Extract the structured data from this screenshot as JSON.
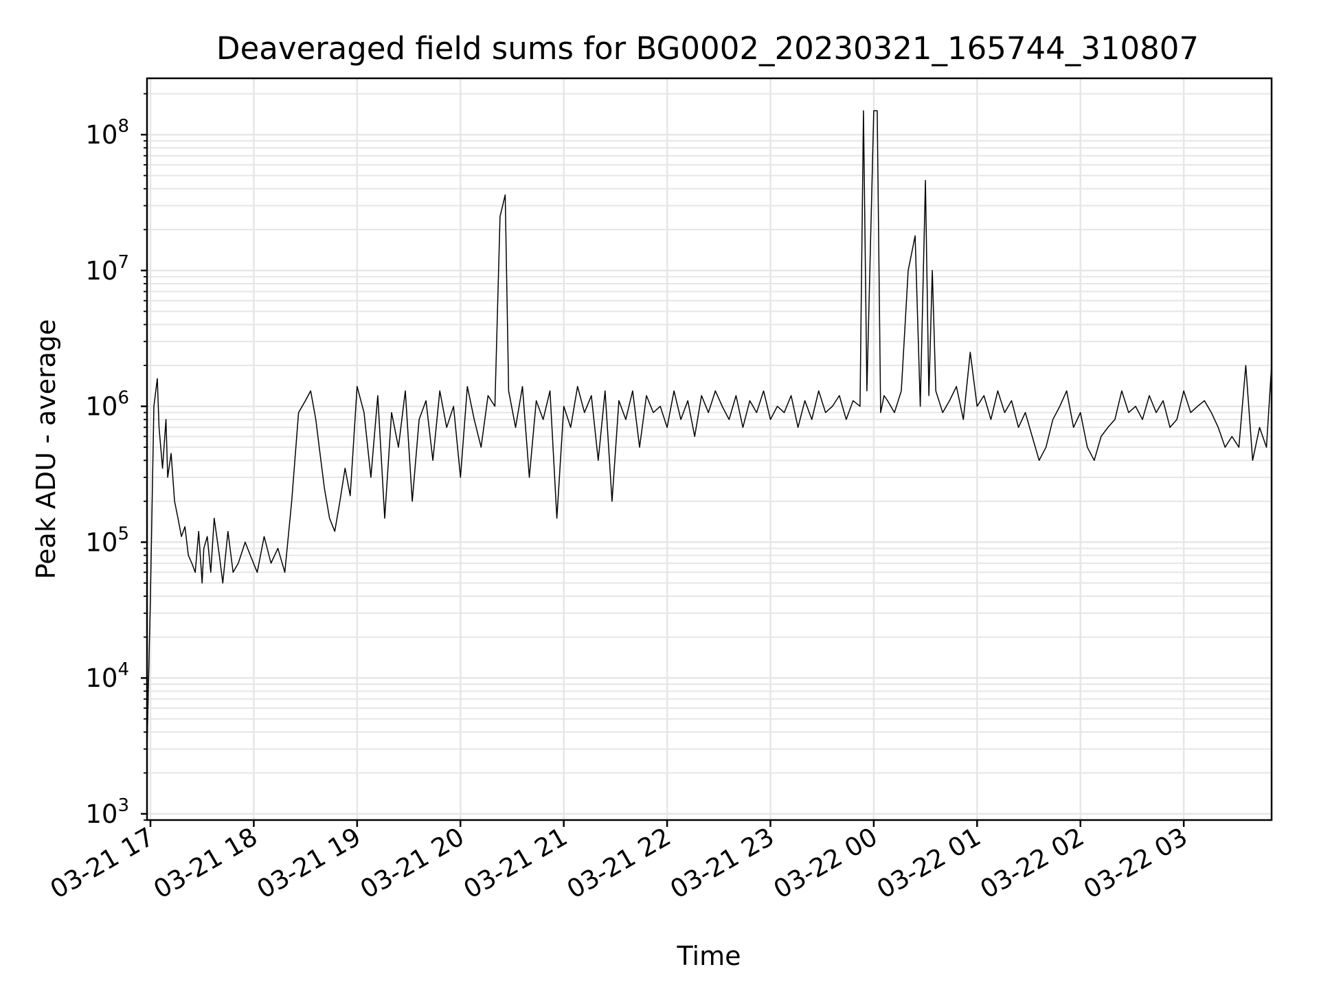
{
  "chart_data": {
    "type": "line",
    "title": "Deaveraged field sums for BG0002_20230321_165744_310807",
    "xlabel": "Time",
    "ylabel": "Peak ADU - average",
    "yscale": "log",
    "ylim": [
      900,
      260000000
    ],
    "xlim": [
      "2023-03-21 16:58",
      "2023-03-22 03:51"
    ],
    "grid": true,
    "legend": "none",
    "line_color": "#000000",
    "grid_color": "#e6e6e6",
    "x_ticks": [
      "03-21 17",
      "03-21 18",
      "03-21 19",
      "03-21 20",
      "03-21 21",
      "03-21 22",
      "03-21 23",
      "03-22 00",
      "03-22 01",
      "03-22 02",
      "03-22 03"
    ],
    "y_ticks": [
      {
        "base": "10",
        "exp": "3",
        "value": 1000
      },
      {
        "base": "10",
        "exp": "4",
        "value": 10000
      },
      {
        "base": "10",
        "exp": "5",
        "value": 100000
      },
      {
        "base": "10",
        "exp": "6",
        "value": 1000000
      },
      {
        "base": "10",
        "exp": "7",
        "value": 10000000
      },
      {
        "base": "10",
        "exp": "8",
        "value": 100000000
      }
    ],
    "series": [
      {
        "x": [
          "2023-03-21 16:58",
          "2023-03-21 17:00",
          "2023-03-21 17:02",
          "2023-03-21 17:04",
          "2023-03-21 17:05",
          "2023-03-21 17:07",
          "2023-03-21 17:09",
          "2023-03-21 17:10",
          "2023-03-21 17:12",
          "2023-03-21 17:14",
          "2023-03-21 17:16",
          "2023-03-21 17:18",
          "2023-03-21 17:20",
          "2023-03-21 17:22",
          "2023-03-21 17:24",
          "2023-03-21 17:26",
          "2023-03-21 17:28",
          "2023-03-21 17:30",
          "2023-03-21 17:31",
          "2023-03-21 17:33",
          "2023-03-21 17:35",
          "2023-03-21 17:37",
          "2023-03-21 17:40",
          "2023-03-21 17:42",
          "2023-03-21 17:45",
          "2023-03-21 17:48",
          "2023-03-21 17:51",
          "2023-03-21 17:55",
          "2023-03-21 17:58",
          "2023-03-21 18:02",
          "2023-03-21 18:06",
          "2023-03-21 18:10",
          "2023-03-21 18:14",
          "2023-03-21 18:18",
          "2023-03-21 18:22",
          "2023-03-21 18:26",
          "2023-03-21 18:30",
          "2023-03-21 18:33",
          "2023-03-21 18:36",
          "2023-03-21 18:38",
          "2023-03-21 18:41",
          "2023-03-21 18:44",
          "2023-03-21 18:47",
          "2023-03-21 18:50",
          "2023-03-21 18:53",
          "2023-03-21 18:56",
          "2023-03-21 19:00",
          "2023-03-21 19:04",
          "2023-03-21 19:08",
          "2023-03-21 19:12",
          "2023-03-21 19:16",
          "2023-03-21 19:20",
          "2023-03-21 19:24",
          "2023-03-21 19:28",
          "2023-03-21 19:32",
          "2023-03-21 19:36",
          "2023-03-21 19:40",
          "2023-03-21 19:44",
          "2023-03-21 19:48",
          "2023-03-21 19:52",
          "2023-03-21 19:56",
          "2023-03-21 20:00",
          "2023-03-21 20:04",
          "2023-03-21 20:08",
          "2023-03-21 20:12",
          "2023-03-21 20:16",
          "2023-03-21 20:20",
          "2023-03-21 20:23",
          "2023-03-21 20:26",
          "2023-03-21 20:28",
          "2023-03-21 20:32",
          "2023-03-21 20:36",
          "2023-03-21 20:40",
          "2023-03-21 20:44",
          "2023-03-21 20:48",
          "2023-03-21 20:52",
          "2023-03-21 20:56",
          "2023-03-21 21:00",
          "2023-03-21 21:04",
          "2023-03-21 21:08",
          "2023-03-21 21:12",
          "2023-03-21 21:16",
          "2023-03-21 21:20",
          "2023-03-21 21:24",
          "2023-03-21 21:28",
          "2023-03-21 21:32",
          "2023-03-21 21:36",
          "2023-03-21 21:40",
          "2023-03-21 21:44",
          "2023-03-21 21:48",
          "2023-03-21 21:52",
          "2023-03-21 21:56",
          "2023-03-21 22:00",
          "2023-03-21 22:04",
          "2023-03-21 22:08",
          "2023-03-21 22:12",
          "2023-03-21 22:16",
          "2023-03-21 22:20",
          "2023-03-21 22:24",
          "2023-03-21 22:28",
          "2023-03-21 22:32",
          "2023-03-21 22:36",
          "2023-03-21 22:40",
          "2023-03-21 22:44",
          "2023-03-21 22:48",
          "2023-03-21 22:52",
          "2023-03-21 22:56",
          "2023-03-21 23:00",
          "2023-03-21 23:04",
          "2023-03-21 23:08",
          "2023-03-21 23:12",
          "2023-03-21 23:16",
          "2023-03-21 23:20",
          "2023-03-21 23:24",
          "2023-03-21 23:28",
          "2023-03-21 23:32",
          "2023-03-21 23:36",
          "2023-03-21 23:40",
          "2023-03-21 23:44",
          "2023-03-21 23:48",
          "2023-03-21 23:52",
          "2023-03-21 23:54",
          "2023-03-21 23:56",
          "2023-03-22 00:00",
          "2023-03-22 00:02",
          "2023-03-22 00:04",
          "2023-03-22 00:06",
          "2023-03-22 00:08",
          "2023-03-22 00:12",
          "2023-03-22 00:16",
          "2023-03-22 00:20",
          "2023-03-22 00:24",
          "2023-03-22 00:27",
          "2023-03-22 00:30",
          "2023-03-22 00:32",
          "2023-03-22 00:34",
          "2023-03-22 00:36",
          "2023-03-22 00:40",
          "2023-03-22 00:44",
          "2023-03-22 00:48",
          "2023-03-22 00:52",
          "2023-03-22 00:56",
          "2023-03-22 01:00",
          "2023-03-22 01:04",
          "2023-03-22 01:08",
          "2023-03-22 01:12",
          "2023-03-22 01:16",
          "2023-03-22 01:20",
          "2023-03-22 01:24",
          "2023-03-22 01:28",
          "2023-03-22 01:32",
          "2023-03-22 01:36",
          "2023-03-22 01:40",
          "2023-03-22 01:44",
          "2023-03-22 01:48",
          "2023-03-22 01:52",
          "2023-03-22 01:56",
          "2023-03-22 02:00",
          "2023-03-22 02:04",
          "2023-03-22 02:08",
          "2023-03-22 02:12",
          "2023-03-22 02:16",
          "2023-03-22 02:20",
          "2023-03-22 02:24",
          "2023-03-22 02:28",
          "2023-03-22 02:32",
          "2023-03-22 02:36",
          "2023-03-22 02:40",
          "2023-03-22 02:44",
          "2023-03-22 02:48",
          "2023-03-22 02:52",
          "2023-03-22 02:56",
          "2023-03-22 03:00",
          "2023-03-22 03:04",
          "2023-03-22 03:08",
          "2023-03-22 03:12",
          "2023-03-22 03:16",
          "2023-03-22 03:20",
          "2023-03-22 03:24",
          "2023-03-22 03:28",
          "2023-03-22 03:32",
          "2023-03-22 03:36",
          "2023-03-22 03:40",
          "2023-03-22 03:44",
          "2023-03-22 03:48",
          "2023-03-22 03:51"
        ],
        "y": [
          3000,
          40000,
          1000000,
          1600000,
          700000,
          350000,
          800000,
          300000,
          450000,
          200000,
          150000,
          110000,
          130000,
          80000,
          70000,
          60000,
          120000,
          50000,
          90000,
          110000,
          60000,
          150000,
          80000,
          50000,
          120000,
          60000,
          70000,
          100000,
          80000,
          60000,
          110000,
          70000,
          90000,
          60000,
          200000,
          900000,
          1100000,
          1300000,
          800000,
          500000,
          250000,
          150000,
          120000,
          200000,
          350000,
          220000,
          1400000,
          900000,
          300000,
          1200000,
          150000,
          900000,
          500000,
          1300000,
          200000,
          800000,
          1100000,
          400000,
          1300000,
          700000,
          1000000,
          300000,
          1400000,
          800000,
          500000,
          1200000,
          1000000,
          25000000,
          36000000,
          1300000,
          700000,
          1400000,
          300000,
          1100000,
          800000,
          1300000,
          150000,
          1000000,
          700000,
          1400000,
          900000,
          1200000,
          400000,
          1300000,
          200000,
          1100000,
          800000,
          1300000,
          500000,
          1200000,
          900000,
          1000000,
          700000,
          1300000,
          800000,
          1100000,
          600000,
          1200000,
          900000,
          1300000,
          1000000,
          800000,
          1200000,
          700000,
          1100000,
          900000,
          1300000,
          800000,
          1000000,
          900000,
          1200000,
          700000,
          1100000,
          800000,
          1300000,
          900000,
          1000000,
          1200000,
          800000,
          1100000,
          1000000,
          150000000,
          1300000,
          150000000,
          150000000,
          900000,
          1200000,
          1100000,
          900000,
          1300000,
          10000000,
          18000000,
          1000000,
          46000000,
          1200000,
          10000000,
          1300000,
          900000,
          1100000,
          1400000,
          800000,
          2500000,
          1000000,
          1200000,
          800000,
          1300000,
          900000,
          1100000,
          700000,
          900000,
          600000,
          400000,
          500000,
          800000,
          1000000,
          1300000,
          700000,
          900000,
          500000,
          400000,
          600000,
          700000,
          800000,
          1300000,
          900000,
          1000000,
          800000,
          1200000,
          900000,
          1100000,
          700000,
          800000,
          1300000,
          900000,
          1000000,
          1100000,
          900000,
          700000,
          500000,
          600000,
          500000,
          2000000,
          400000,
          700000,
          500000,
          2000000
        ]
      }
    ],
    "annotations": []
  }
}
